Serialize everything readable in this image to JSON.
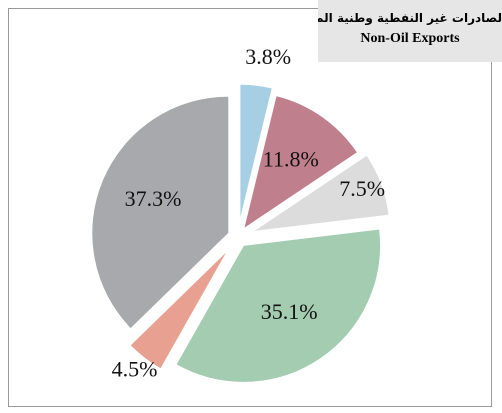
{
  "chart_data": {
    "type": "pie",
    "title": "لصادرات غير النفطية وطنية المنشأ",
    "subtitle": "Non-Oil Exports",
    "values": [
      3.8,
      11.8,
      7.5,
      35.1,
      4.5,
      37.3
    ],
    "value_labels": [
      "3.8%",
      "11.8%",
      "7.5%",
      "35.1%",
      "4.5%",
      "37.3%"
    ],
    "colors": [
      "#a6cfe4",
      "#c07f8c",
      "#dcdcdc",
      "#a3ccb0",
      "#e8a090",
      "#a7a9ac"
    ]
  }
}
